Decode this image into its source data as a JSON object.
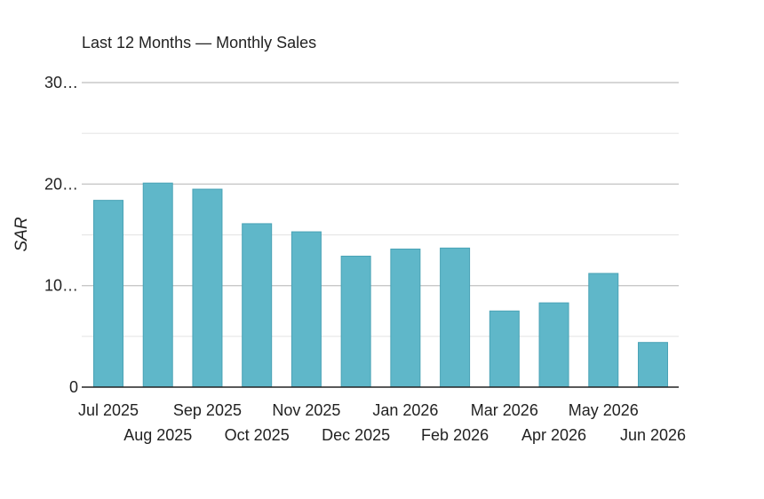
{
  "chart_data": {
    "type": "bar",
    "title": "Last 12 Months — Monthly Sales",
    "xlabel": "",
    "ylabel": "SAR",
    "categories": [
      "Jul 2025",
      "Aug 2025",
      "Sep 2025",
      "Oct 2025",
      "Nov 2025",
      "Dec 2025",
      "Jan 2026",
      "Feb 2026",
      "Mar 2026",
      "Apr 2026",
      "May 2026",
      "Jun 2026"
    ],
    "values": [
      18.4,
      20.1,
      19.5,
      16.1,
      15.3,
      12.9,
      13.6,
      13.7,
      7.5,
      8.3,
      11.2,
      4.4
    ],
    "ylim": [
      0,
      30
    ],
    "y_ticks": [
      {
        "value": 0,
        "label": "0"
      },
      {
        "value": 10,
        "label": "10…"
      },
      {
        "value": 20,
        "label": "20…"
      },
      {
        "value": 30,
        "label": "30…"
      }
    ],
    "minor_gridlines": [
      5,
      15,
      25
    ],
    "grid": true,
    "legend": "none",
    "colors": {
      "bar_fill": "#5fb7c9",
      "bar_stroke": "#4aa3b6",
      "major_grid": "#c8c8c8",
      "minor_grid": "#e6e6e6",
      "axis": "#222222"
    }
  }
}
